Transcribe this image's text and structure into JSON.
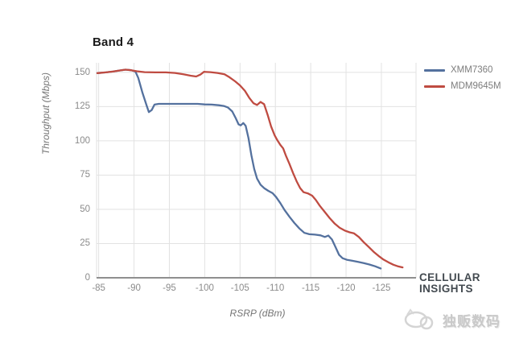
{
  "chart_title": "Band 4",
  "legend": {
    "position": "right-top",
    "items": [
      {
        "label": "XMM7360",
        "color": "#54719e"
      },
      {
        "label": "MDM9645M",
        "color": "#bf4b41"
      }
    ]
  },
  "axes": {
    "y_title": "Throughput (Mbps)",
    "x_title": "RSRP (dBm)",
    "y_ticks": [
      0,
      25,
      50,
      75,
      100,
      125,
      150
    ],
    "x_ticks": [
      -85,
      -90,
      -95,
      -100,
      -105,
      -110,
      -115,
      -120,
      -125
    ]
  },
  "branding": {
    "line1": "CELLULAR",
    "line2": "INSIGHTS"
  },
  "watermark": {
    "text": "独贩数码",
    "logo": "animal-silhouette-logo"
  },
  "colors": {
    "grid": "#e2e2e2",
    "axis_line": "#8f8f8f",
    "tick_text": "#8b8b8b",
    "title_text": "#1b1b1b"
  },
  "chart_data": {
    "type": "line",
    "title": "Band 4",
    "xlabel": "RSRP (dBm)",
    "ylabel": "Throughput (Mbps)",
    "xlim": [
      -84.7,
      -129.9
    ],
    "ylim": [
      0,
      157
    ],
    "grid": true,
    "legend_position": "right-top",
    "series": [
      {
        "name": "XMM7360",
        "color": "#54719e",
        "points": [
          [
            -84.8,
            149.5
          ],
          [
            -86,
            150
          ],
          [
            -87,
            150.6
          ],
          [
            -88,
            151.4
          ],
          [
            -88.8,
            152
          ],
          [
            -89.6,
            151.6
          ],
          [
            -90.2,
            150.6
          ],
          [
            -90.6,
            146
          ],
          [
            -91.2,
            135
          ],
          [
            -91.8,
            125.5
          ],
          [
            -92.1,
            121
          ],
          [
            -92.5,
            122.5
          ],
          [
            -92.9,
            126.5
          ],
          [
            -93.5,
            127
          ],
          [
            -95,
            127
          ],
          [
            -97,
            127
          ],
          [
            -99,
            127
          ],
          [
            -100,
            126.6
          ],
          [
            -101,
            126.5
          ],
          [
            -102,
            126
          ],
          [
            -102.7,
            125.5
          ],
          [
            -103.3,
            124.3
          ],
          [
            -103.9,
            121.5
          ],
          [
            -104.4,
            116.5
          ],
          [
            -104.8,
            112
          ],
          [
            -105.1,
            111.3
          ],
          [
            -105.45,
            113
          ],
          [
            -105.8,
            111
          ],
          [
            -106.2,
            102
          ],
          [
            -106.6,
            89.5
          ],
          [
            -107,
            79.5
          ],
          [
            -107.4,
            72.5
          ],
          [
            -107.9,
            68
          ],
          [
            -108.4,
            65.5
          ],
          [
            -109,
            63.5
          ],
          [
            -109.6,
            61.8
          ],
          [
            -110.1,
            59
          ],
          [
            -110.7,
            54.5
          ],
          [
            -111.3,
            49.5
          ],
          [
            -112,
            44.5
          ],
          [
            -112.7,
            40
          ],
          [
            -113.4,
            36
          ],
          [
            -114.1,
            32.8
          ],
          [
            -114.8,
            31.8
          ],
          [
            -115.6,
            31.5
          ],
          [
            -116.4,
            31
          ],
          [
            -117,
            29.8
          ],
          [
            -117.5,
            30.8
          ],
          [
            -118,
            28
          ],
          [
            -118.5,
            22.5
          ],
          [
            -119,
            16.8
          ],
          [
            -119.5,
            14.3
          ],
          [
            -120.1,
            13.2
          ],
          [
            -120.9,
            12.4
          ],
          [
            -121.7,
            11.6
          ],
          [
            -122.5,
            10.7
          ],
          [
            -123.3,
            9.7
          ],
          [
            -124.1,
            8.4
          ],
          [
            -124.9,
            6.8
          ]
        ]
      },
      {
        "name": "MDM9645M",
        "color": "#bf4b41",
        "points": [
          [
            -84.8,
            149.5
          ],
          [
            -86,
            150
          ],
          [
            -87,
            150.6
          ],
          [
            -88,
            151.4
          ],
          [
            -88.8,
            152
          ],
          [
            -89.6,
            151.6
          ],
          [
            -90.4,
            150.8
          ],
          [
            -91.5,
            150.2
          ],
          [
            -93,
            150
          ],
          [
            -94.5,
            150
          ],
          [
            -95.8,
            149.6
          ],
          [
            -97,
            148.6
          ],
          [
            -98,
            147.6
          ],
          [
            -98.8,
            147
          ],
          [
            -99.4,
            148.4
          ],
          [
            -99.9,
            150.4
          ],
          [
            -100.8,
            150.2
          ],
          [
            -101.8,
            149.6
          ],
          [
            -102.8,
            148.6
          ],
          [
            -103.5,
            146.5
          ],
          [
            -104.3,
            143.5
          ],
          [
            -105,
            140.5
          ],
          [
            -105.7,
            136.5
          ],
          [
            -106.3,
            131.5
          ],
          [
            -106.9,
            127.5
          ],
          [
            -107.4,
            126.2
          ],
          [
            -107.9,
            128.4
          ],
          [
            -108.4,
            126.8
          ],
          [
            -108.9,
            119
          ],
          [
            -109.4,
            110.5
          ],
          [
            -109.9,
            104
          ],
          [
            -110.3,
            100.3
          ],
          [
            -110.7,
            97
          ],
          [
            -111.1,
            94.5
          ],
          [
            -111.5,
            89
          ],
          [
            -112,
            83
          ],
          [
            -112.5,
            76.5
          ],
          [
            -113,
            70.5
          ],
          [
            -113.5,
            65.5
          ],
          [
            -114,
            62.5
          ],
          [
            -114.6,
            61.6
          ],
          [
            -115.2,
            60
          ],
          [
            -115.7,
            57
          ],
          [
            -116.3,
            52.5
          ],
          [
            -117,
            48
          ],
          [
            -117.7,
            43.5
          ],
          [
            -118.4,
            39.5
          ],
          [
            -119.1,
            36.5
          ],
          [
            -119.8,
            34.5
          ],
          [
            -120.5,
            33.2
          ],
          [
            -121.1,
            32.5
          ],
          [
            -121.8,
            29.8
          ],
          [
            -122.5,
            26
          ],
          [
            -123.2,
            22.5
          ],
          [
            -123.9,
            19
          ],
          [
            -124.6,
            16
          ],
          [
            -125.3,
            13.3
          ],
          [
            -126,
            11.3
          ],
          [
            -126.7,
            9.5
          ],
          [
            -127.4,
            8.3
          ],
          [
            -128,
            7.6
          ]
        ]
      }
    ]
  }
}
